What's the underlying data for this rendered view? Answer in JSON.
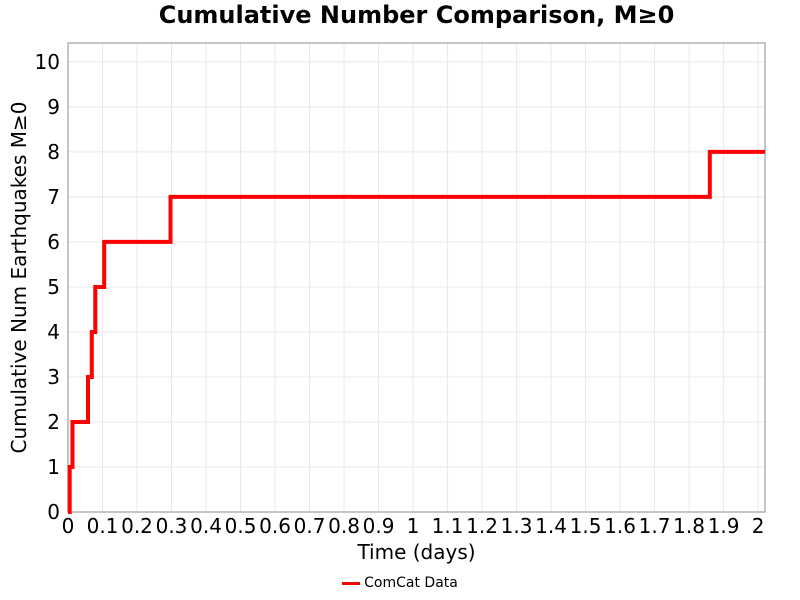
{
  "chart_data": {
    "type": "line",
    "title": "Cumulative Number Comparison, M≥0",
    "xlabel": "Time (days)",
    "ylabel": "Cumulative Num Earthquakes M≥0",
    "series": [
      {
        "name": "ComCat Data",
        "color": "#ff0000",
        "style": "step-post",
        "line_start_x": 0,
        "event_times_days": [
          0.005,
          0.013,
          0.058,
          0.069,
          0.079,
          0.105,
          0.297,
          1.86
        ],
        "cumulative_counts": [
          1,
          2,
          3,
          4,
          5,
          6,
          7,
          8
        ],
        "line_end_x": 2.02
      }
    ],
    "xlim": [
      0,
      2.02
    ],
    "ylim": [
      0,
      10.42
    ],
    "x_ticks": [
      0,
      0.1,
      0.2,
      0.3,
      0.4,
      0.5,
      0.6,
      0.7,
      0.8,
      0.9,
      1,
      1.1,
      1.2,
      1.3,
      1.4,
      1.5,
      1.6,
      1.7,
      1.8,
      1.9,
      2
    ],
    "x_tick_labels": [
      "0",
      "0.1",
      "0.2",
      "0.3",
      "0.4",
      "0.5",
      "0.6",
      "0.7",
      "0.8",
      "0.9",
      "1",
      "1.1",
      "1.2",
      "1.3",
      "1.4",
      "1.5",
      "1.6",
      "1.7",
      "1.8",
      "1.9",
      "2"
    ],
    "y_ticks": [
      0,
      1,
      2,
      3,
      4,
      5,
      6,
      7,
      8,
      9,
      10
    ],
    "y_tick_labels": [
      "0",
      "1",
      "2",
      "3",
      "4",
      "5",
      "6",
      "7",
      "8",
      "9",
      "10"
    ],
    "grid": true,
    "legend_position": "bottom-center",
    "colors": {
      "line": "#ff0000",
      "grid": "#e8e8e8",
      "spine": "#a0a0a0",
      "text": "#000000"
    }
  }
}
